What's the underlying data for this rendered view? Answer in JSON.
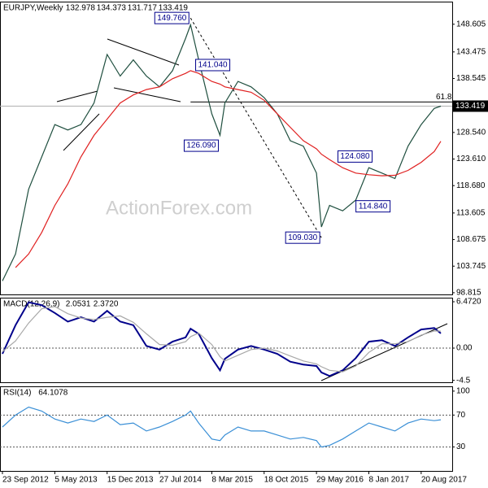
{
  "watermark": "ActionForex.com",
  "chart_data": [
    {
      "type": "line",
      "title": "EURJPY,Weekly",
      "ohlc": [
        132.978,
        134.373,
        131.717,
        133.419
      ],
      "x": [
        "23 Sep 2012",
        "18 Nov 2012",
        "13 Jan 2013",
        "10 Mar 2013",
        "5 May 2013",
        "30 Jun 2013",
        "25 Aug 2013",
        "20 Oct 2013",
        "15 Dec 2013",
        "9 Feb 2014",
        "6 Apr 2014",
        "1 Jun 2014",
        "27 Jul 2014",
        "21 Sep 2014",
        "16 Nov 2014",
        "7 Dec 2014",
        "11 Jan 2015",
        "8 Mar 2015",
        "12 Apr 2015",
        "3 May 2015",
        "28 Jun 2015",
        "23 Aug 2015",
        "18 Oct 2015",
        "13 Dec 2015",
        "7 Feb 2016",
        "3 Apr 2016",
        "29 May 2016",
        "19 Jun 2016",
        "24 Jul 2016",
        "18 Sep 2016",
        "13 Nov 2016",
        "8 Jan 2017",
        "5 Mar 2017",
        "30 Apr 2017",
        "25 Jun 2017",
        "20 Aug 2017",
        "15 Oct 2017",
        "12 Nov 2017"
      ],
      "series": [
        {
          "color": "#1f4f3f",
          "values": [
            101,
            106,
            118,
            124,
            130,
            129,
            130,
            134,
            143,
            139,
            142,
            139,
            137,
            140,
            146,
            148.5,
            142,
            132,
            128,
            134,
            138,
            137,
            135,
            132,
            127,
            126,
            121,
            111,
            115,
            114,
            116,
            122,
            121,
            120,
            126,
            130,
            133,
            133.419
          ]
        },
        {
          "color": "#e02020",
          "values": [
            null,
            103.5,
            106,
            110,
            115,
            119,
            124,
            128,
            131,
            134,
            135.5,
            136.5,
            137,
            138.5,
            139.5,
            140,
            139.5,
            138,
            137.5,
            137,
            136.5,
            136,
            134.5,
            132,
            129.5,
            127,
            125.5,
            124.5,
            123.5,
            122,
            121,
            120.7,
            120.5,
            120.6,
            121.5,
            123,
            125,
            126.9
          ]
        }
      ],
      "annotations": [
        {
          "x": "7 Dec 2014",
          "value": 149.76,
          "label": "149.760"
        },
        {
          "x": "31 May 2015",
          "value": 141.04,
          "label": "141.040"
        },
        {
          "x": "12 Apr 2015",
          "value": 126.09,
          "label": "126.090"
        },
        {
          "x": "29 Jan 2017",
          "value": 124.08,
          "label": "124.080"
        },
        {
          "x": "16 Apr 2017",
          "value": 114.84,
          "label": "114.840"
        },
        {
          "x": "19 Jun 2016",
          "value": 109.03,
          "label": "109.030"
        }
      ],
      "fib_ratio": 61.8,
      "fib_level": 134.2,
      "fib_start": "7 Dec 2014",
      "xlim": [
        "23 Sep 2012",
        "10 Dec 2017"
      ],
      "ylim": [
        98.5,
        152.8
      ],
      "yticks": [
        148.605,
        143.475,
        138.545,
        {
          "value": 128.54,
          "label": "128.540"
        },
        {
          "value": 123.61,
          "label": "123.610"
        },
        {
          "value": 118.68,
          "label": "118.680"
        },
        113.605,
        108.675,
        103.745,
        98.815
      ]
    },
    {
      "type": "line",
      "title": "MACD(12,26,9)",
      "header_values": [
        2.0531,
        {
          "value": 2.372,
          "label": "2.3720"
        }
      ],
      "x": [
        "23 Sep 2012",
        "18 Nov 2012",
        "13 Jan 2013",
        "10 Mar 2013",
        "5 May 2013",
        "30 Jun 2013",
        "25 Aug 2013",
        "20 Oct 2013",
        "15 Dec 2013",
        "9 Feb 2014",
        "6 Apr 2014",
        "1 Jun 2014",
        "27 Jul 2014",
        "21 Sep 2014",
        "16 Nov 2014",
        "7 Dec 2014",
        "11 Jan 2015",
        "8 Mar 2015",
        "12 Apr 2015",
        "3 May 2015",
        "28 Jun 2015",
        "23 Aug 2015",
        "18 Oct 2015",
        "13 Dec 2015",
        "7 Feb 2016",
        "3 Apr 2016",
        "29 May 2016",
        "19 Jun 2016",
        "24 Jul 2016",
        "18 Sep 2016",
        "13 Nov 2016",
        "8 Jan 2017",
        "5 Mar 2017",
        "30 Apr 2017",
        "25 Jun 2017",
        "20 Aug 2017",
        "15 Oct 2017",
        "12 Nov 2017"
      ],
      "series": [
        {
          "color": "#00008b",
          "values": [
            -0.8,
            3.2,
            6.4,
            6.0,
            4.9,
            3.7,
            4.3,
            3.7,
            5.2,
            3.7,
            3.2,
            0.3,
            -0.2,
            0.9,
            1.5,
            2.7,
            2.0,
            -1.4,
            -3.1,
            -1.5,
            -0.2,
            0.3,
            -0.2,
            -0.8,
            -1.9,
            -2.3,
            -2.5,
            -3.4,
            -3.9,
            -3.1,
            -1.4,
            0.9,
            1.1,
            0.3,
            1.5,
            2.6,
            2.8,
            2.0531
          ]
        },
        {
          "color": "#a8a8a8",
          "values": [
            -0.5,
            1.0,
            3.5,
            5.5,
            5.8,
            4.8,
            4.2,
            4.0,
            4.3,
            4.5,
            3.6,
            2.0,
            0.5,
            0.4,
            0.9,
            1.6,
            2.1,
            0.5,
            -1.2,
            -1.8,
            -1.0,
            -0.2,
            0.0,
            -0.4,
            -1.1,
            -1.8,
            -2.2,
            -2.6,
            -3.1,
            -3.3,
            -2.5,
            -0.6,
            0.6,
            0.6,
            0.9,
            1.8,
            2.4,
            2.372
          ]
        }
      ],
      "level_lines": [
        0
      ],
      "xlim": [
        "23 Sep 2012",
        "10 Dec 2017"
      ],
      "ylim": [
        -4.77,
        7.04
      ],
      "yticks": [
        {
          "value": 6.472,
          "label": "6.4720"
        },
        {
          "value": 0,
          "label": "0.00"
        },
        -4.5
      ]
    },
    {
      "type": "line",
      "title": "RSI(14)",
      "header_values": [
        64.1078
      ],
      "x": [
        "23 Sep 2012",
        "18 Nov 2012",
        "13 Jan 2013",
        "10 Mar 2013",
        "5 May 2013",
        "30 Jun 2013",
        "25 Aug 2013",
        "20 Oct 2013",
        "15 Dec 2013",
        "9 Feb 2014",
        "6 Apr 2014",
        "1 Jun 2014",
        "27 Jul 2014",
        "21 Sep 2014",
        "16 Nov 2014",
        "7 Dec 2014",
        "11 Jan 2015",
        "8 Mar 2015",
        "12 Apr 2015",
        "3 May 2015",
        "28 Jun 2015",
        "23 Aug 2015",
        "18 Oct 2015",
        "13 Dec 2015",
        "7 Feb 2016",
        "3 Apr 2016",
        "29 May 2016",
        "19 Jun 2016",
        "24 Jul 2016",
        "18 Sep 2016",
        "13 Nov 2016",
        "8 Jan 2017",
        "5 Mar 2017",
        "30 Apr 2017",
        "25 Jun 2017",
        "20 Aug 2017",
        "15 Oct 2017",
        "12 Nov 2017"
      ],
      "series": [
        {
          "color": "#3a8fd6",
          "values": [
            55,
            70,
            80,
            75,
            65,
            60,
            65,
            62,
            70,
            58,
            60,
            50,
            55,
            62,
            70,
            75,
            60,
            40,
            38,
            45,
            55,
            50,
            50,
            45,
            40,
            42,
            38,
            30,
            32,
            40,
            50,
            60,
            55,
            50,
            60,
            65,
            63,
            64.1078
          ]
        }
      ],
      "level_lines": [
        70,
        30
      ],
      "xlim": [
        "23 Sep 2012",
        "10 Dec 2017"
      ],
      "ylim": [
        0,
        106
      ],
      "yticks": [
        100,
        70,
        30
      ],
      "xticks": [
        "23 Sep 2012",
        "5 May 2013",
        "15 Dec 2013",
        "27 Jul 2014",
        "8 Mar 2015",
        "18 Oct 2015",
        "29 May 2016",
        "8 Jan 2017",
        "20 Aug 2017"
      ]
    }
  ]
}
